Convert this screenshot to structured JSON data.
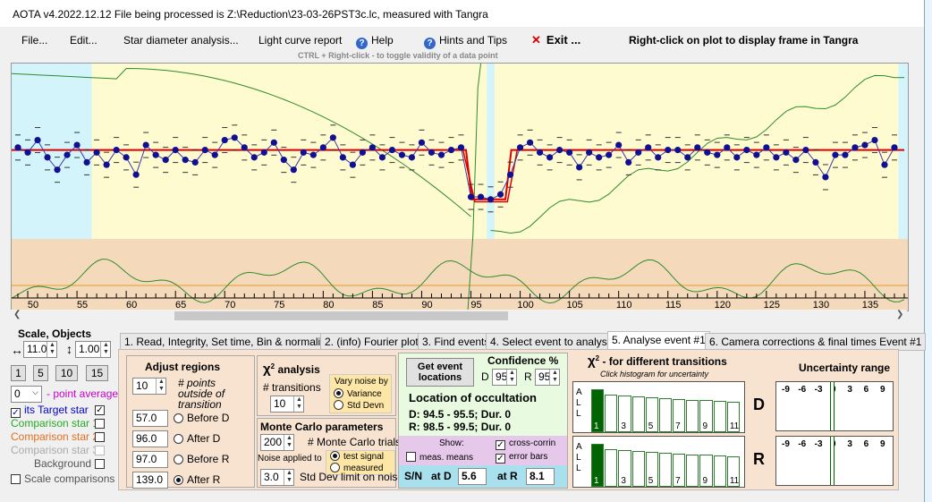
{
  "window": {
    "title": "AOTA v4.2022.12.12    File being processed is Z:\\Reduction\\23-03-26PST3c.lc, measured with Tangra"
  },
  "menu": {
    "file": "File...",
    "edit": "Edit...",
    "star_diameter": "Star diameter analysis...",
    "light_curve": "Light curve report",
    "help": "Help",
    "hints": "Hints and Tips",
    "exit": "Exit ...",
    "right_click_hint": "Right-click on plot to display frame in Tangra"
  },
  "plot_hint": "CTRL + Right-click  -  to toggle validity of a data point",
  "plot": {
    "x_ticks": [
      "50",
      "55",
      "60",
      "65",
      "70",
      "75",
      "80",
      "85",
      "90",
      "95",
      "100",
      "105",
      "110",
      "115",
      "120",
      "125",
      "130",
      "135"
    ]
  },
  "chart_data": {
    "type": "scatter",
    "x_ticks": [
      50,
      55,
      60,
      65,
      70,
      75,
      80,
      85,
      90,
      95,
      100,
      105,
      110,
      115,
      120,
      125,
      130,
      135
    ],
    "xlim": [
      48,
      139
    ],
    "ylim": [
      0,
      100
    ],
    "baseline_level": 65,
    "event_level": 45,
    "event_d": 94.5,
    "event_r": 98.5,
    "target_points": [
      {
        "x": 49,
        "y": 66
      },
      {
        "x": 50,
        "y": 64
      },
      {
        "x": 51,
        "y": 69
      },
      {
        "x": 52,
        "y": 62
      },
      {
        "x": 53,
        "y": 57
      },
      {
        "x": 54,
        "y": 63
      },
      {
        "x": 55,
        "y": 67
      },
      {
        "x": 56,
        "y": 60
      },
      {
        "x": 57,
        "y": 64
      },
      {
        "x": 58,
        "y": 59
      },
      {
        "x": 59,
        "y": 65
      },
      {
        "x": 60,
        "y": 62
      },
      {
        "x": 61,
        "y": 55
      },
      {
        "x": 62,
        "y": 67
      },
      {
        "x": 63,
        "y": 63
      },
      {
        "x": 64,
        "y": 61
      },
      {
        "x": 65,
        "y": 65
      },
      {
        "x": 66,
        "y": 61
      },
      {
        "x": 67,
        "y": 60
      },
      {
        "x": 68,
        "y": 65
      },
      {
        "x": 69,
        "y": 63
      },
      {
        "x": 70,
        "y": 69
      },
      {
        "x": 71,
        "y": 70
      },
      {
        "x": 72,
        "y": 66
      },
      {
        "x": 73,
        "y": 62
      },
      {
        "x": 74,
        "y": 64
      },
      {
        "x": 75,
        "y": 68
      },
      {
        "x": 76,
        "y": 61
      },
      {
        "x": 77,
        "y": 57
      },
      {
        "x": 78,
        "y": 64
      },
      {
        "x": 79,
        "y": 63
      },
      {
        "x": 80,
        "y": 66
      },
      {
        "x": 81,
        "y": 70
      },
      {
        "x": 82,
        "y": 62
      },
      {
        "x": 83,
        "y": 59
      },
      {
        "x": 84,
        "y": 64
      },
      {
        "x": 85,
        "y": 66
      },
      {
        "x": 86,
        "y": 62
      },
      {
        "x": 87,
        "y": 65
      },
      {
        "x": 88,
        "y": 63
      },
      {
        "x": 89,
        "y": 62
      },
      {
        "x": 90,
        "y": 68
      },
      {
        "x": 91,
        "y": 64
      },
      {
        "x": 92,
        "y": 63
      },
      {
        "x": 93,
        "y": 65
      },
      {
        "x": 94,
        "y": 66
      },
      {
        "x": 95,
        "y": 46
      },
      {
        "x": 96,
        "y": 46
      },
      {
        "x": 97,
        "y": 45
      },
      {
        "x": 98,
        "y": 47
      },
      {
        "x": 99,
        "y": 55
      },
      {
        "x": 100,
        "y": 66
      },
      {
        "x": 101,
        "y": 68
      },
      {
        "x": 102,
        "y": 64
      },
      {
        "x": 103,
        "y": 62
      },
      {
        "x": 104,
        "y": 65
      },
      {
        "x": 105,
        "y": 64
      },
      {
        "x": 106,
        "y": 58
      },
      {
        "x": 107,
        "y": 64
      },
      {
        "x": 108,
        "y": 62
      },
      {
        "x": 109,
        "y": 63
      },
      {
        "x": 110,
        "y": 67
      },
      {
        "x": 111,
        "y": 60
      },
      {
        "x": 112,
        "y": 64
      },
      {
        "x": 113,
        "y": 66
      },
      {
        "x": 114,
        "y": 62
      },
      {
        "x": 115,
        "y": 65
      },
      {
        "x": 116,
        "y": 65
      },
      {
        "x": 117,
        "y": 62
      },
      {
        "x": 118,
        "y": 66
      },
      {
        "x": 119,
        "y": 64
      },
      {
        "x": 120,
        "y": 63
      },
      {
        "x": 121,
        "y": 66
      },
      {
        "x": 122,
        "y": 62
      },
      {
        "x": 123,
        "y": 65
      },
      {
        "x": 124,
        "y": 63
      },
      {
        "x": 125,
        "y": 66
      },
      {
        "x": 126,
        "y": 62
      },
      {
        "x": 127,
        "y": 64
      },
      {
        "x": 128,
        "y": 61
      },
      {
        "x": 129,
        "y": 65
      },
      {
        "x": 130,
        "y": 60
      },
      {
        "x": 131,
        "y": 54
      },
      {
        "x": 132,
        "y": 63
      },
      {
        "x": 133,
        "y": 63
      },
      {
        "x": 134,
        "y": 66
      },
      {
        "x": 135,
        "y": 67
      },
      {
        "x": 136,
        "y": 69
      },
      {
        "x": 137,
        "y": 59
      },
      {
        "x": 138,
        "y": 66
      }
    ]
  },
  "tabs": [
    "1.  Read, Integrity, Set time, Bin & normalise",
    "2. (info)  Fourier plot",
    "3. Find events",
    "4. Select event to analyse",
    "5. Analyse event #1",
    "6. Camera corrections & final times Event #1"
  ],
  "left": {
    "scale_objects": "Scale,  Objects",
    "scale_x": "11.0",
    "scale_y": "1.00",
    "btn_1": "1",
    "btn_5": "5",
    "btn_10": "10",
    "btn_15": "15",
    "point_avg_value": "0",
    "point_avg_label": "- point average",
    "target_star": "its  Target star",
    "comp1": "Comparison star 1",
    "comp2": "Comparison star 2",
    "comp3": "Comparison star 3",
    "background": "Background",
    "scale_comparisons": "Scale comparisons",
    "comp1_color": "#22aa22",
    "comp2_color": "#e07020",
    "comp3_color": "#aaaaaa"
  },
  "adjust": {
    "title": "Adjust regions",
    "points_value": "10",
    "points_label": "# points outside of transition",
    "before_d_val": "57.0",
    "before_d": "Before D",
    "after_d_val": "96.0",
    "after_d": "After D",
    "before_r_val": "97.0",
    "before_r": "Before R",
    "after_r_val": "139.0",
    "after_r": "After R"
  },
  "chi": {
    "title": "analysis",
    "transitions_label": "# transitions",
    "transitions_value": "10",
    "vary_noise": "Vary noise by",
    "variance": "Variance",
    "std_devn": "Std Devn"
  },
  "monte": {
    "title": "Monte Carlo parameters",
    "trials_value": "200",
    "trials_label": "# Monte Carlo trials",
    "noise_applied": "Noise applied to",
    "test_signal": "test signal",
    "measured": "measured",
    "std_value": "3.0",
    "std_label": "Std Dev limit on noise"
  },
  "location": {
    "get_events": "Get event locations",
    "confidence": "Confidence %",
    "d_label": "D",
    "d_value": "95",
    "r_label": "R",
    "r_value": "95",
    "title": "Location of occultation",
    "d_line": "D: 94.5 - 95.5; Dur. 0",
    "r_line": "R: 98.5 - 99.5; Dur. 0",
    "show": "Show:",
    "meas_means": "meas. means",
    "cross_corr": "cross-corrin",
    "error_bars": "error bars",
    "sn_label": "S/N",
    "at_d": "at D",
    "at_d_value": "5.6",
    "at_r": "at R",
    "at_r_value": "8.1"
  },
  "chi2": {
    "title": "- for different transitions",
    "subtitle": "Click histogram for uncertainty",
    "all_a": "A",
    "all_l1": "L",
    "all_l2": "L",
    "hist_labels": [
      "1",
      "3",
      "5",
      "7",
      "9",
      "11"
    ],
    "hist_values": [
      100,
      88,
      86,
      84,
      82,
      80,
      78,
      76,
      74,
      72,
      70
    ]
  },
  "uncertainty": {
    "title": "Uncertainty range",
    "d_label": "D",
    "r_label": "R",
    "ticks": [
      "-9",
      "-6",
      "-3",
      "0",
      "3",
      "6",
      "9"
    ]
  }
}
